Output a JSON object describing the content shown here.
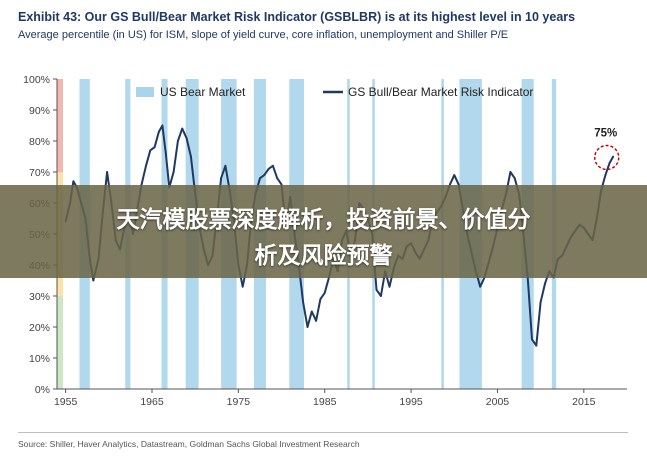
{
  "header": {
    "title": "Exhibit 43: Our GS Bull/Bear Market Risk Indicator (GSBLBR) is at its highest level in 10 years",
    "subtitle": "Average percentile (in US) for ISM, slope of yield curve, core inflation, unemployment and Shiller P/E"
  },
  "footer": {
    "source": "Source: Shiller, Haver Analytics, Datastream, Goldman Sachs Global Investment Research"
  },
  "overlay": {
    "line1": "天汽模股票深度解析，投资前景、价值分",
    "line2": "析及风险预警",
    "color": "#6c6648"
  },
  "chart_data": {
    "type": "line",
    "title": "Exhibit 43: Our GS Bull/Bear Market Risk Indicator (GSBLBR) is at its highest level in 10 years",
    "subtitle": "Average percentile (in US) for ISM, slope of yield curve, core inflation, unemployment and Shiller P/E",
    "xlim": [
      1954,
      2020
    ],
    "ylim": [
      0,
      100
    ],
    "x_ticks": [
      "1955",
      "1965",
      "1975",
      "1985",
      "1995",
      "2005",
      "2015"
    ],
    "y_ticks": [
      "0%",
      "10%",
      "20%",
      "30%",
      "40%",
      "50%",
      "60%",
      "70%",
      "80%",
      "90%",
      "100%"
    ],
    "legend": {
      "placement": "top",
      "bear_label": "US Bear Market",
      "line_label": "GS Bull/Bear Market Risk Indicator"
    },
    "annotation": {
      "text": "75%",
      "x": 2018,
      "y": 75
    },
    "zones": [
      {
        "from": 70,
        "to": 100,
        "color": "#f4b6b0"
      },
      {
        "from": 30,
        "to": 70,
        "color": "#fbe3a6"
      },
      {
        "from": 0,
        "to": 30,
        "color": "#cfe6c5"
      }
    ],
    "bear_markets": [
      [
        1956.6,
        1957.8
      ],
      [
        1961.9,
        1962.5
      ],
      [
        1966.1,
        1966.8
      ],
      [
        1968.9,
        1970.4
      ],
      [
        1973.0,
        1974.8
      ],
      [
        1976.8,
        1978.2
      ],
      [
        1980.9,
        1982.6
      ],
      [
        1987.6,
        1987.9
      ],
      [
        1990.5,
        1990.8
      ],
      [
        1998.5,
        1998.8
      ],
      [
        2000.6,
        2003.2
      ],
      [
        2007.8,
        2009.2
      ],
      [
        2011.3,
        2011.8
      ]
    ],
    "series": [
      {
        "name": "GS Bull/Bear Market Risk Indicator",
        "color": "#1f3864",
        "points": [
          [
            1955.0,
            54
          ],
          [
            1955.5,
            60
          ],
          [
            1955.9,
            67
          ],
          [
            1956.3,
            65
          ],
          [
            1956.8,
            60
          ],
          [
            1957.3,
            55
          ],
          [
            1957.8,
            42
          ],
          [
            1958.2,
            35
          ],
          [
            1958.8,
            42
          ],
          [
            1959.3,
            57
          ],
          [
            1959.8,
            70
          ],
          [
            1960.3,
            60
          ],
          [
            1960.8,
            48
          ],
          [
            1961.3,
            45
          ],
          [
            1961.8,
            52
          ],
          [
            1962.3,
            56
          ],
          [
            1962.8,
            50
          ],
          [
            1963.3,
            58
          ],
          [
            1963.8,
            66
          ],
          [
            1964.3,
            72
          ],
          [
            1964.8,
            77
          ],
          [
            1965.3,
            78
          ],
          [
            1965.8,
            83
          ],
          [
            1966.2,
            85
          ],
          [
            1966.6,
            76
          ],
          [
            1967.0,
            65
          ],
          [
            1967.5,
            70
          ],
          [
            1968.0,
            80
          ],
          [
            1968.5,
            84
          ],
          [
            1969.0,
            81
          ],
          [
            1969.5,
            75
          ],
          [
            1970.0,
            63
          ],
          [
            1970.5,
            52
          ],
          [
            1971.0,
            45
          ],
          [
            1971.5,
            40
          ],
          [
            1972.0,
            43
          ],
          [
            1972.5,
            55
          ],
          [
            1973.0,
            68
          ],
          [
            1973.5,
            72
          ],
          [
            1974.0,
            64
          ],
          [
            1974.5,
            54
          ],
          [
            1975.0,
            40
          ],
          [
            1975.5,
            33
          ],
          [
            1976.0,
            40
          ],
          [
            1976.5,
            55
          ],
          [
            1977.0,
            63
          ],
          [
            1977.5,
            68
          ],
          [
            1978.0,
            69
          ],
          [
            1978.5,
            71
          ],
          [
            1979.0,
            72
          ],
          [
            1979.5,
            68
          ],
          [
            1980.0,
            66
          ],
          [
            1980.5,
            52
          ],
          [
            1981.0,
            62
          ],
          [
            1981.5,
            50
          ],
          [
            1982.0,
            40
          ],
          [
            1982.5,
            28
          ],
          [
            1983.0,
            20
          ],
          [
            1983.5,
            25
          ],
          [
            1984.0,
            22
          ],
          [
            1984.5,
            29
          ],
          [
            1985.0,
            31
          ],
          [
            1985.5,
            36
          ],
          [
            1986.0,
            42
          ],
          [
            1986.5,
            38
          ],
          [
            1987.0,
            48
          ],
          [
            1987.5,
            51
          ],
          [
            1988.0,
            43
          ],
          [
            1988.5,
            48
          ],
          [
            1989.0,
            60
          ],
          [
            1989.5,
            58
          ],
          [
            1990.0,
            55
          ],
          [
            1990.5,
            50
          ],
          [
            1991.0,
            32
          ],
          [
            1991.5,
            30
          ],
          [
            1992.0,
            38
          ],
          [
            1992.5,
            33
          ],
          [
            1993.0,
            39
          ],
          [
            1993.5,
            43
          ],
          [
            1994.0,
            42
          ],
          [
            1994.5,
            46
          ],
          [
            1995.0,
            47
          ],
          [
            1995.5,
            44
          ],
          [
            1996.0,
            42
          ],
          [
            1996.5,
            45
          ],
          [
            1997.0,
            48
          ],
          [
            1997.5,
            55
          ],
          [
            1998.0,
            57
          ],
          [
            1998.5,
            59
          ],
          [
            1999.0,
            62
          ],
          [
            1999.5,
            66
          ],
          [
            2000.0,
            69
          ],
          [
            2000.5,
            66
          ],
          [
            2001.0,
            58
          ],
          [
            2001.5,
            50
          ],
          [
            2002.0,
            44
          ],
          [
            2002.5,
            38
          ],
          [
            2003.0,
            33
          ],
          [
            2003.5,
            36
          ],
          [
            2004.0,
            41
          ],
          [
            2004.5,
            46
          ],
          [
            2005.0,
            52
          ],
          [
            2005.5,
            58
          ],
          [
            2006.0,
            63
          ],
          [
            2006.5,
            70
          ],
          [
            2007.0,
            68
          ],
          [
            2007.5,
            63
          ],
          [
            2008.0,
            50
          ],
          [
            2008.5,
            36
          ],
          [
            2009.0,
            16
          ],
          [
            2009.5,
            14
          ],
          [
            2010.0,
            28
          ],
          [
            2010.5,
            34
          ],
          [
            2011.0,
            38
          ],
          [
            2011.5,
            36
          ],
          [
            2012.0,
            42
          ],
          [
            2012.5,
            43
          ],
          [
            2013.0,
            46
          ],
          [
            2013.5,
            49
          ],
          [
            2014.0,
            51
          ],
          [
            2014.5,
            53
          ],
          [
            2015.0,
            52
          ],
          [
            2015.5,
            50
          ],
          [
            2016.0,
            48
          ],
          [
            2016.5,
            55
          ],
          [
            2017.0,
            64
          ],
          [
            2017.5,
            69
          ],
          [
            2018.0,
            73
          ],
          [
            2018.4,
            75
          ]
        ]
      }
    ]
  }
}
